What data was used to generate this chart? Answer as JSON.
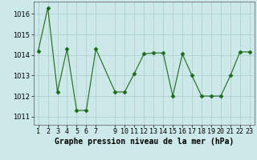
{
  "x": [
    1,
    2,
    3,
    4,
    5,
    6,
    7,
    9,
    10,
    11,
    12,
    13,
    14,
    15,
    16,
    17,
    18,
    19,
    20,
    21,
    22,
    23
  ],
  "y": [
    1014.2,
    1016.3,
    1012.2,
    1014.3,
    1011.3,
    1011.3,
    1014.3,
    1012.2,
    1012.2,
    1013.1,
    1014.05,
    1014.1,
    1014.1,
    1012.0,
    1014.05,
    1013.0,
    1012.0,
    1012.0,
    1012.0,
    1013.0,
    1014.15,
    1014.15
  ],
  "line_color": "#1a6b1a",
  "marker": "D",
  "marker_size": 2.5,
  "marker_color": "#1a6b1a",
  "background_color": "#cce8e8",
  "grid_color": "#aacccc",
  "xlabel": "Graphe pression niveau de la mer (hPa)",
  "ylim": [
    1010.6,
    1016.6
  ],
  "yticks": [
    1011,
    1012,
    1013,
    1014,
    1015,
    1016
  ],
  "xticks": [
    1,
    2,
    3,
    4,
    5,
    6,
    7,
    9,
    10,
    11,
    12,
    13,
    14,
    15,
    16,
    17,
    18,
    19,
    20,
    21,
    22,
    23
  ],
  "xtick_labels": [
    "1",
    "2",
    "3",
    "4",
    "5",
    "6",
    "7",
    "9",
    "10",
    "11",
    "12",
    "13",
    "14",
    "15",
    "16",
    "17",
    "18",
    "19",
    "20",
    "21",
    "22",
    "23"
  ],
  "xlabel_fontsize": 7,
  "tick_fontsize": 6
}
